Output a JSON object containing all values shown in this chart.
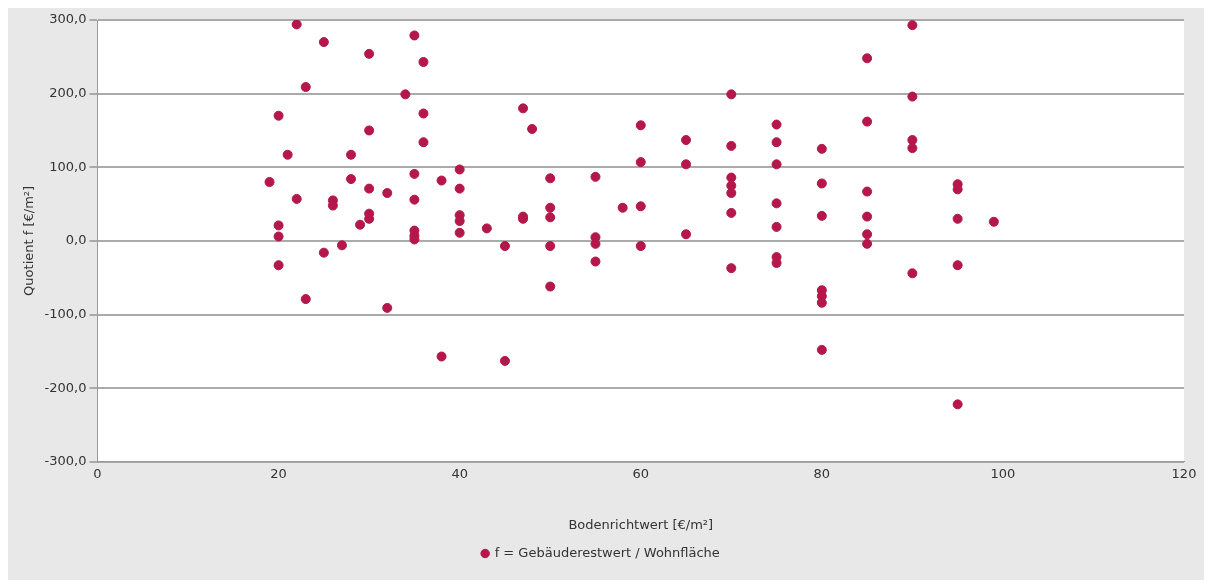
{
  "chart_data": {
    "type": "scatter",
    "xlabel": "Bodenrichtwert [€/m²]",
    "ylabel": "Quotient f [€/m²]",
    "series": [
      {
        "name": "f = Gebäuderestwert / Wohnfläche",
        "color": "#b5174a",
        "x": [
          19,
          20,
          20,
          20,
          20,
          21,
          22,
          22,
          23,
          23,
          25,
          25,
          26,
          26,
          27,
          28,
          28,
          29,
          30,
          30,
          30,
          30,
          30,
          32,
          32,
          34,
          35,
          35,
          35,
          35,
          35,
          35,
          36,
          36,
          36,
          38,
          38,
          40,
          40,
          40,
          40,
          40,
          43,
          45,
          45,
          47,
          47,
          47,
          48,
          50,
          50,
          50,
          50,
          50,
          55,
          55,
          55,
          55,
          58,
          60,
          60,
          60,
          60,
          65,
          65,
          65,
          70,
          70,
          70,
          70,
          70,
          70,
          70,
          75,
          75,
          75,
          75,
          75,
          75,
          75,
          80,
          80,
          80,
          80,
          80,
          80,
          80,
          85,
          85,
          85,
          85,
          85,
          85,
          90,
          90,
          90,
          90,
          90,
          95,
          95,
          95,
          95,
          95,
          99
        ],
        "values": [
          80,
          170,
          21,
          6,
          -33,
          117,
          294,
          57,
          209,
          -79,
          270,
          -16,
          55,
          48,
          -6,
          117,
          84,
          22,
          254,
          150,
          71,
          37,
          30,
          65,
          -91,
          199,
          279,
          91,
          56,
          14,
          7,
          2,
          243,
          173,
          134,
          82,
          -157,
          97,
          71,
          35,
          27,
          11,
          17,
          -7,
          -163,
          180,
          33,
          30,
          152,
          85,
          45,
          32,
          -7,
          -62,
          87,
          5,
          -4,
          -28,
          45,
          157,
          107,
          47,
          -7,
          137,
          104,
          9,
          199,
          129,
          86,
          75,
          65,
          38,
          -37,
          158,
          134,
          104,
          51,
          19,
          -22,
          -30,
          125,
          78,
          34,
          -67,
          -75,
          -84,
          -148,
          248,
          162,
          67,
          33,
          9,
          -4,
          293,
          196,
          137,
          126,
          -44,
          77,
          70,
          30,
          -33,
          -222,
          26
        ]
      }
    ],
    "xlim": [
      0,
      120
    ],
    "xticks": [
      0,
      20,
      40,
      60,
      80,
      100,
      120
    ],
    "ylim": [
      -300,
      300
    ],
    "yticks": [
      {
        "value": -300,
        "label": "-300,0"
      },
      {
        "value": -200,
        "label": "-200,0"
      },
      {
        "value": -100,
        "label": "-100,0"
      },
      {
        "value": 0,
        "label": "0,0"
      },
      {
        "value": 100,
        "label": "100,0"
      },
      {
        "value": 200,
        "label": "200,0"
      },
      {
        "value": 300,
        "label": "300,0"
      }
    ],
    "grid": "y",
    "legend": "bottom",
    "marker": "circle"
  }
}
